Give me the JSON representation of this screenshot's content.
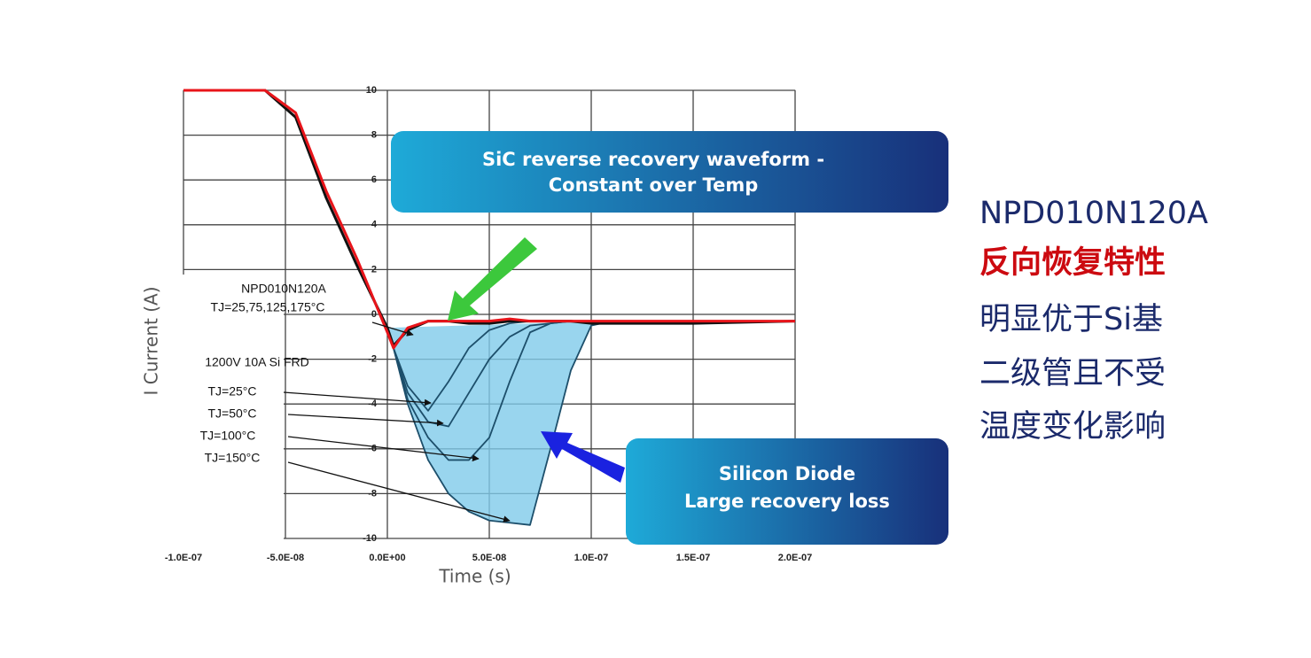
{
  "chart_data": {
    "type": "line",
    "x_label": "Time (s)",
    "y_label": "I Current (A)",
    "x": [
      -1e-07,
      -6e-08,
      -4.5e-08,
      -3e-08,
      -1.5e-08,
      0,
      3e-09,
      1e-08,
      2e-08,
      3e-08,
      4e-08,
      5e-08,
      6e-08,
      7e-08,
      8e-08,
      9e-08,
      1e-07,
      1.1e-07,
      1.5e-07,
      2e-07
    ],
    "xlim": [
      -1e-07,
      2e-07
    ],
    "xticks": [
      {
        "value": -1e-07,
        "label": "-1.0E-07"
      },
      {
        "value": -5e-08,
        "label": "-5.0E-08"
      },
      {
        "value": 0,
        "label": "0.0E+00"
      },
      {
        "value": 5e-08,
        "label": "5.0E-08"
      },
      {
        "value": 1e-07,
        "label": "1.0E-07"
      },
      {
        "value": 1.5e-07,
        "label": "1.5E-07"
      },
      {
        "value": 2e-07,
        "label": "2.0E-07"
      }
    ],
    "ylim": [
      -10,
      10
    ],
    "yticks": [
      10,
      8,
      6,
      4,
      2,
      0,
      -2,
      -4,
      -6,
      -8,
      -10
    ],
    "grid": true,
    "series": [
      {
        "name": "TJ=150°C",
        "color": "#1d4f6b",
        "fill": "#7fcbea",
        "values": [
          null,
          null,
          null,
          null,
          null,
          -0.6,
          -1.5,
          -4,
          -6.5,
          -8,
          -8.8,
          -9.2,
          -9.3,
          -9.4,
          -6,
          -2.5,
          -0.5,
          -0.3,
          null,
          null
        ]
      },
      {
        "name": "TJ=100°C",
        "color": "#1d4f6b",
        "values": [
          null,
          null,
          null,
          null,
          null,
          -0.6,
          -1.5,
          -3.8,
          -5.5,
          -6.5,
          -6.5,
          -5.5,
          -3,
          -0.8,
          -0.4,
          -0.3,
          -0.3,
          null,
          null,
          null
        ]
      },
      {
        "name": "TJ=50°C",
        "color": "#1d4f6b",
        "values": [
          null,
          null,
          null,
          null,
          null,
          -0.6,
          -1.5,
          -3.5,
          -4.8,
          -5,
          -3.5,
          -2,
          -1,
          -0.5,
          -0.4,
          -0.3,
          null,
          null,
          null,
          null
        ]
      },
      {
        "name": "TJ=25°C",
        "color": "#1d4f6b",
        "values": [
          null,
          null,
          null,
          null,
          null,
          -0.6,
          -1.5,
          -3.2,
          -4.3,
          -3,
          -1.5,
          -0.7,
          -0.4,
          -0.3,
          null,
          null,
          null,
          null,
          null,
          null
        ]
      },
      {
        "color": "#111111",
        "values": [
          10,
          10,
          8.8,
          5.2,
          2.2,
          -0.6,
          -1.4,
          -0.7,
          -0.3,
          -0.3,
          -0.4,
          -0.4,
          -0.3,
          -0.3,
          -0.3,
          -0.3,
          -0.4,
          -0.4,
          -0.4,
          -0.3
        ]
      },
      {
        "color": "#e8141a",
        "values": [
          10,
          10,
          9,
          5.5,
          2.5,
          -0.8,
          -1.5,
          -0.6,
          -0.3,
          -0.3,
          -0.3,
          -0.3,
          -0.2,
          -0.3,
          -0.3,
          -0.3,
          -0.3,
          -0.3,
          -0.3,
          -0.3
        ]
      }
    ],
    "annotations": [
      "NPD010N120A",
      "TJ=25,75,125,175°C",
      "1200V 10A  Si FRD"
    ],
    "callouts": [
      [
        "SiC reverse recovery waveform -",
        "Constant over Temp"
      ],
      [
        "Silicon Diode",
        "Large recovery loss"
      ]
    ]
  },
  "side_text": {
    "part_number": "NPD010N120A",
    "heading": "反向恢复特性",
    "lines": [
      "明显优于Si基",
      "二级管且不受",
      "温度变化影响"
    ]
  }
}
